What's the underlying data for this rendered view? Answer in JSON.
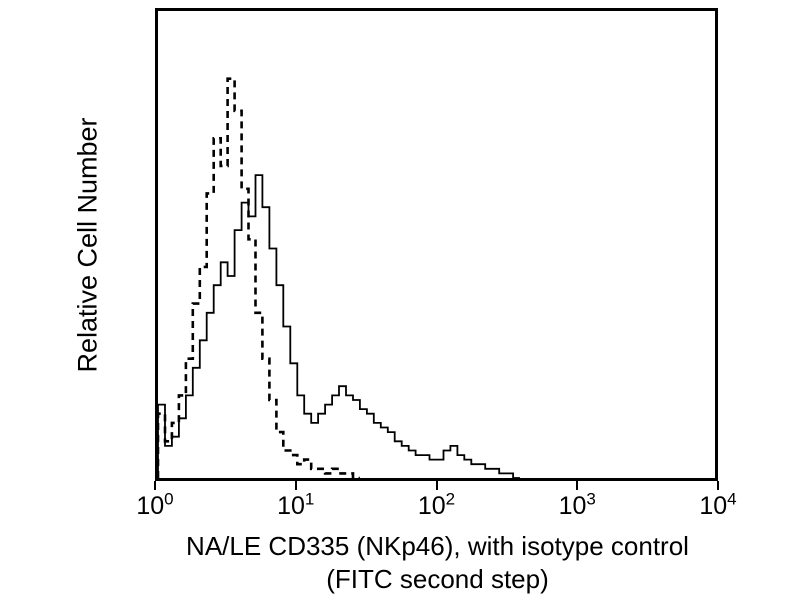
{
  "figure": {
    "ylabel": "Relative Cell Number",
    "xlabel_line1": "NA/LE CD335 (NKp46), with isotype control",
    "xlabel_line2": "(FITC second step)"
  },
  "chart_data": {
    "type": "line",
    "subtype": "flow-cytometry-histogram-overlay",
    "title": "",
    "xlabel": "NA/LE CD335 (NKp46), with isotype control (FITC second step)",
    "ylabel": "Relative Cell Number",
    "x_scale": "log10",
    "x_range_log": [
      0,
      4
    ],
    "y_range": [
      0,
      1
    ],
    "grid": false,
    "legend": "none",
    "x_ticks": [
      {
        "base": "10",
        "exp": "0"
      },
      {
        "base": "10",
        "exp": "1"
      },
      {
        "base": "10",
        "exp": "2"
      },
      {
        "base": "10",
        "exp": "3"
      },
      {
        "base": "10",
        "exp": "4"
      }
    ],
    "bin_width_log": 0.05,
    "series": [
      {
        "name": "isotype control (FITC second step)",
        "style": "dashed",
        "color": "#000000",
        "start_log": 0,
        "heights": [
          0.14,
          0.08,
          0.12,
          0.18,
          0.26,
          0.38,
          0.46,
          0.62,
          0.74,
          0.68,
          0.87,
          0.8,
          0.63,
          0.52,
          0.36,
          0.26,
          0.17,
          0.1,
          0.06,
          0.05,
          0.03,
          0.04,
          0.02,
          0.02,
          0.01,
          0.02,
          0.01,
          0.01,
          0.0
        ]
      },
      {
        "name": "NA/LE CD335 (NKp46)",
        "style": "solid",
        "color": "#000000",
        "start_log": 0,
        "heights": [
          0.16,
          0.07,
          0.09,
          0.13,
          0.18,
          0.24,
          0.3,
          0.36,
          0.42,
          0.47,
          0.44,
          0.54,
          0.6,
          0.57,
          0.66,
          0.59,
          0.5,
          0.42,
          0.33,
          0.25,
          0.18,
          0.14,
          0.12,
          0.14,
          0.16,
          0.18,
          0.2,
          0.18,
          0.17,
          0.15,
          0.14,
          0.12,
          0.11,
          0.1,
          0.08,
          0.07,
          0.06,
          0.05,
          0.05,
          0.04,
          0.04,
          0.06,
          0.07,
          0.05,
          0.04,
          0.03,
          0.03,
          0.02,
          0.02,
          0.01,
          0.01,
          0.0
        ]
      }
    ]
  }
}
